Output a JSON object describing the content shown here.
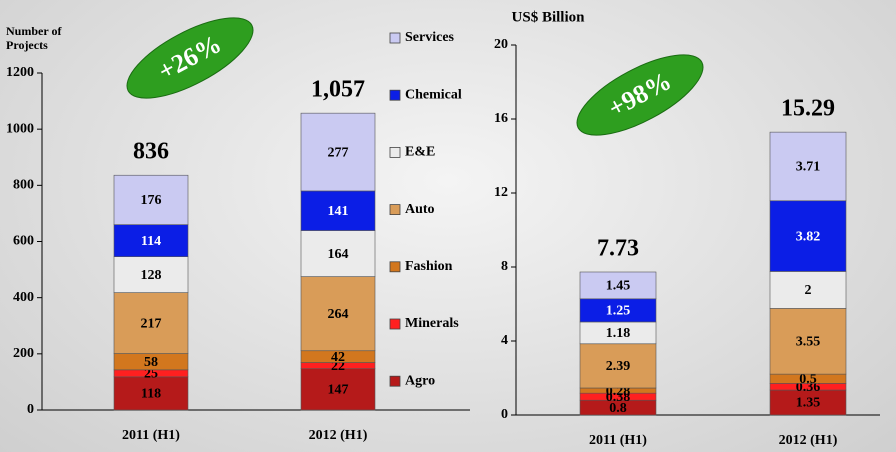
{
  "chart_data": [
    {
      "type": "stacked_bar",
      "y_label": "Number of Projects",
      "annotation": "+26%",
      "categories": [
        "2011 (H1)",
        "2012 (H1)"
      ],
      "ylim": [
        0,
        1200
      ],
      "yticks": [
        0,
        200,
        400,
        600,
        800,
        1000,
        1200
      ],
      "totals": [
        836,
        1057
      ],
      "total_labels": [
        "836",
        "1,057"
      ],
      "series": [
        {
          "name": "Agro",
          "color": "#b51a1a",
          "values": [
            118,
            147
          ]
        },
        {
          "name": "Minerals",
          "color": "#ff2020",
          "values": [
            25,
            22
          ]
        },
        {
          "name": "Fashion",
          "color": "#d2771e",
          "values": [
            58,
            42
          ]
        },
        {
          "name": "Auto",
          "color": "#d99c58",
          "values": [
            217,
            264
          ]
        },
        {
          "name": "E&E",
          "color": "#ebebeb",
          "values": [
            128,
            164
          ]
        },
        {
          "name": "Chemical",
          "color": "#0b1ee6",
          "values": [
            114,
            141
          ]
        },
        {
          "name": "Services",
          "color": "#cacaf2",
          "values": [
            176,
            277
          ]
        }
      ]
    },
    {
      "type": "stacked_bar",
      "y_label": "US$ Billion",
      "annotation": "+98%",
      "categories": [
        "2011 (H1)",
        "2012 (H1)"
      ],
      "ylim": [
        0,
        20
      ],
      "yticks": [
        0,
        4,
        8,
        12,
        16,
        20
      ],
      "totals": [
        7.73,
        15.29
      ],
      "series": [
        {
          "name": "Agro",
          "color": "#b51a1a",
          "values": [
            0.8,
            1.35
          ]
        },
        {
          "name": "Minerals",
          "color": "#ff2020",
          "values": [
            0.38,
            0.36
          ]
        },
        {
          "name": "Fashion",
          "color": "#d2771e",
          "values": [
            0.28,
            0.5
          ]
        },
        {
          "name": "Auto",
          "color": "#d99c58",
          "values": [
            2.39,
            3.55
          ]
        },
        {
          "name": "E&E",
          "color": "#ebebeb",
          "values": [
            1.18,
            2
          ]
        },
        {
          "name": "Chemical",
          "color": "#0b1ee6",
          "values": [
            1.25,
            3.82
          ]
        },
        {
          "name": "Services",
          "color": "#cacaf2",
          "values": [
            1.45,
            3.71
          ]
        }
      ]
    }
  ]
}
